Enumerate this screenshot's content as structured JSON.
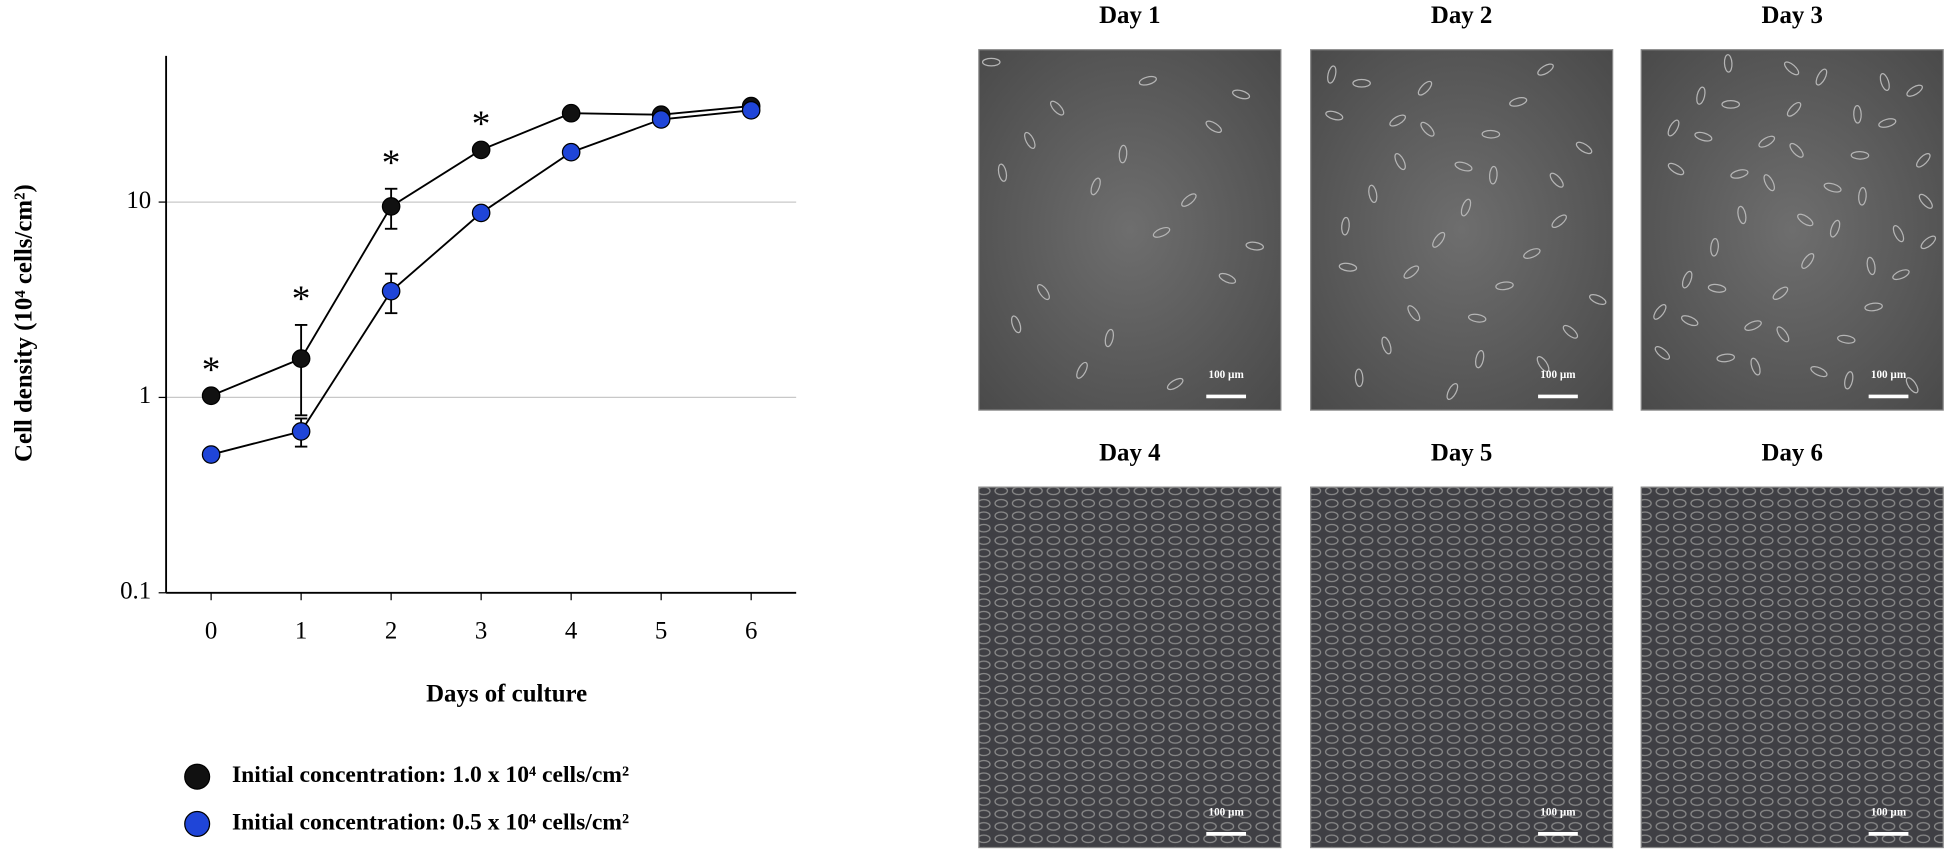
{
  "chart_data": {
    "type": "line",
    "yscale": "log",
    "ylabel": "Cell density (10⁴ cells/cm²)",
    "xlabel": "Days of culture",
    "xlim": [
      -0.5,
      6.5
    ],
    "xticks": [
      0,
      1,
      2,
      3,
      4,
      5,
      6
    ],
    "ylim": [
      0.1,
      56
    ],
    "yticks": [
      0.1,
      1,
      10
    ],
    "grid": true,
    "x": [
      0,
      1,
      2,
      3,
      4,
      5,
      6
    ],
    "series": [
      {
        "name": "Initial concentration: 1.0 x 10⁴ cells/cm²",
        "color": "#111111",
        "values": [
          1.02,
          1.58,
          9.5,
          18.5,
          28.5,
          28,
          31
        ],
        "errors": [
          null,
          0.77,
          2.2,
          null,
          null,
          null,
          null
        ]
      },
      {
        "name": "Initial concentration: 0.5 x 10⁴ cells/cm²",
        "color": "#1f45d8",
        "values": [
          0.51,
          0.67,
          3.5,
          8.8,
          18,
          26.5,
          29.5
        ],
        "errors": [
          null,
          0.11,
          0.8,
          null,
          null,
          null,
          null
        ]
      }
    ],
    "annotations": [
      {
        "text": "*",
        "x": 0
      },
      {
        "text": "*",
        "x": 1
      },
      {
        "text": "*",
        "x": 2
      },
      {
        "text": "*",
        "x": 3
      }
    ]
  },
  "micrographs": [
    {
      "title": "Day 1",
      "scale_bar": "100 µm"
    },
    {
      "title": "Day 2",
      "scale_bar": "100 µm"
    },
    {
      "title": "Day 3",
      "scale_bar": "100 µm"
    },
    {
      "title": "Day 4",
      "scale_bar": "100 µm"
    },
    {
      "title": "Day 5",
      "scale_bar": "100 µm"
    },
    {
      "title": "Day 6",
      "scale_bar": "100 µm"
    }
  ]
}
